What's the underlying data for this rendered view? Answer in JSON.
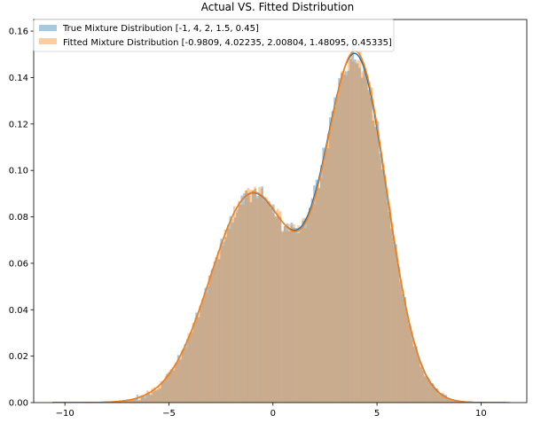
{
  "chart_data": {
    "type": "histogram",
    "title": "Actual VS. Fitted Distribution",
    "xlabel": "",
    "ylabel": "",
    "xlim": [
      -11.5,
      12.2
    ],
    "ylim": [
      0,
      0.165
    ],
    "x_ticks": [
      -10,
      -5,
      0,
      5,
      10
    ],
    "y_ticks": [
      0.0,
      0.02,
      0.04,
      0.06,
      0.08,
      0.1,
      0.12,
      0.14,
      0.16
    ],
    "legend_position": "top-left",
    "series": [
      {
        "name": "True Mixture Distribution [-1, 4, 2, 1.5, 0.45]",
        "color": "#1f77b4",
        "opacity": 0.4,
        "params": {
          "mu1": -1,
          "mu2": 4,
          "sigma1": 2,
          "sigma2": 1.5,
          "weight1": 0.45
        },
        "bins": {
          "start": -10.6,
          "end": 11.2,
          "count": 200
        }
      },
      {
        "name": "Fitted Mixture Distribution [-0.9809, 4.02235, 2.00804, 1.48095, 0.45335]",
        "color": "#ff7f0e",
        "opacity": 0.4,
        "params": {
          "mu1": -0.9809,
          "mu2": 4.02235,
          "sigma1": 2.00804,
          "sigma2": 1.48095,
          "weight1": 0.45335
        },
        "bins": {
          "start": -10.6,
          "end": 11.4,
          "count": 200
        }
      }
    ],
    "curves": [
      {
        "of_series": 0,
        "color": "#1f77b4"
      },
      {
        "of_series": 1,
        "color": "#ff7f0e"
      }
    ]
  }
}
